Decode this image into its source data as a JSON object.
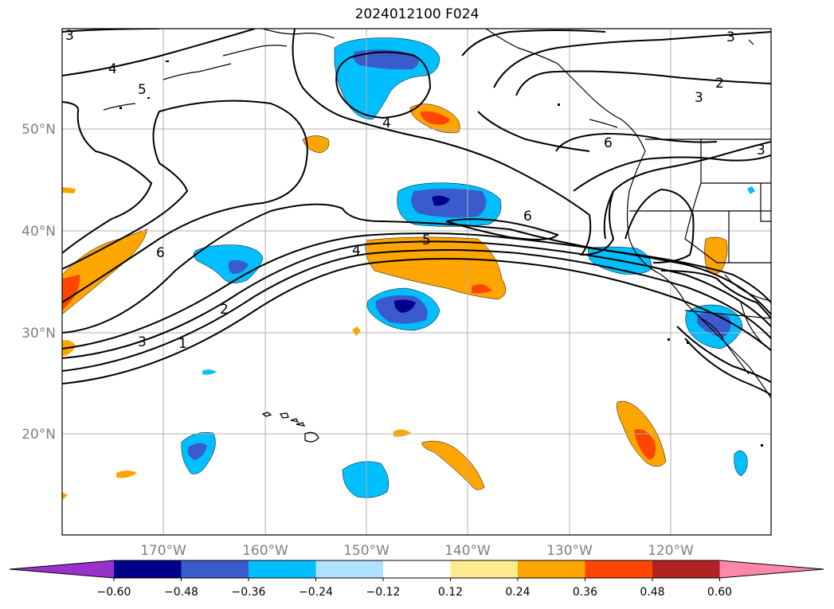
{
  "title": "2024012100 F024",
  "map": {
    "lat_labels": [
      "50°N",
      "40°N",
      "30°N",
      "20°N"
    ],
    "lon_labels": [
      "170°W",
      "160°W",
      "150°W",
      "140°W",
      "130°W",
      "120°W"
    ],
    "contour_labels": [
      "3",
      "4",
      "5",
      "6",
      "4",
      "5",
      "4",
      "6",
      "2",
      "3",
      "1",
      "3",
      "2",
      "3",
      "6",
      "3"
    ]
  },
  "colorbar": {
    "labels": [
      "−0.60",
      "−0.48",
      "−0.36",
      "−0.24",
      "−0.12",
      "0.12",
      "0.24",
      "0.36",
      "0.48",
      "0.60"
    ],
    "colors": [
      "#9932cc",
      "#00008b",
      "#3a5bcc",
      "#00bfff",
      "#b0e2ff",
      "#ffffff",
      "#ffeb8c",
      "#ffa500",
      "#ff4500",
      "#b22222",
      "#ff88aa"
    ]
  }
}
